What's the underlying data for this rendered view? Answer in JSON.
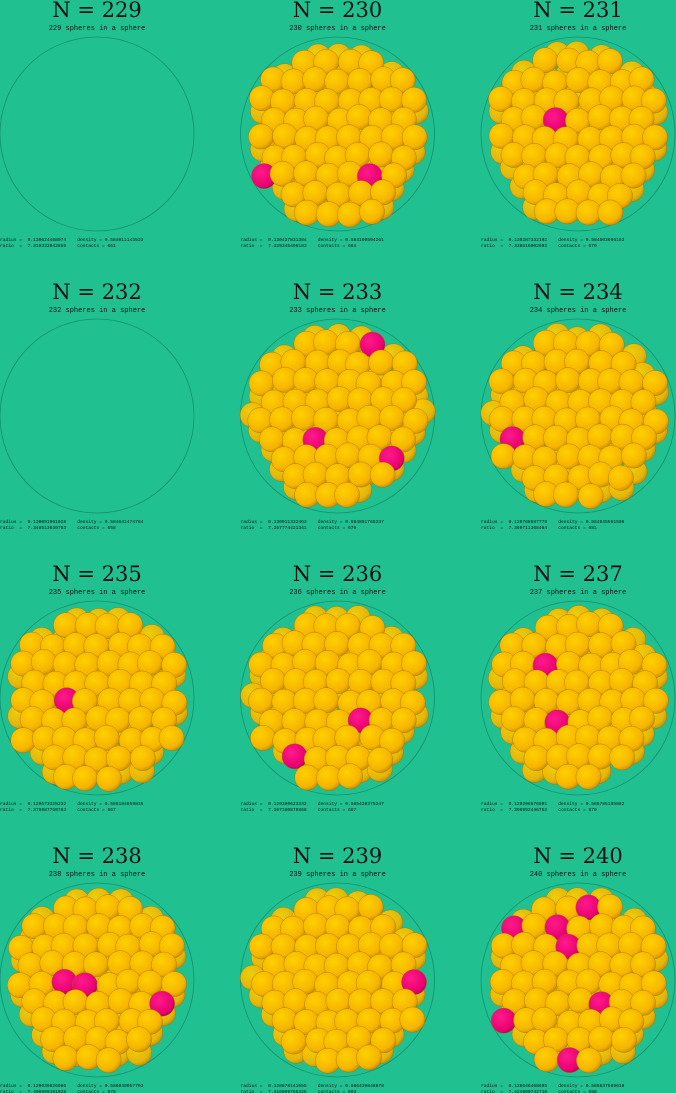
{
  "panels": [
    {
      "title": "N = 229",
      "subtitle": "229 spheres in a sphere",
      "line1": "radius =  0.130624488974    density = 0.584011143533",
      "line2": "ratio  =  7.319332942859    contacts = 661"
    },
    {
      "title": "N = 230",
      "subtitle": "230 spheres in a sphere",
      "line1": "radius =  0.130437831384    density = 0.584160594261",
      "line2": "ratio  =  7.329345496183    contacts = 664"
    },
    {
      "title": "N = 231",
      "subtitle": "231 spheres in a sphere",
      "line1": "radius =  0.130287332102    density = 0.584503666153",
      "line2": "ratio  =  7.338516002692    contacts = 679"
    },
    {
      "title": "N = 232",
      "subtitle": "232 spheres in a sphere",
      "line1": "radius =  0.130091961028    density = 0.584641474784",
      "line2": "ratio  =  7.348513630763    contacts = 658"
    },
    {
      "title": "N = 233",
      "subtitle": "233 spheres in a sphere",
      "line1": "radius =  0.130011332463    density = 0.584851765337",
      "line2": "ratio  =  7.357774421341    contacts = 676"
    },
    {
      "title": "N = 234",
      "subtitle": "234 spheres in a sphere",
      "line1": "radius =  0.129768587778    density = 0.584945551506",
      "line2": "ratio  =  7.369711368464    contacts = 681"
    },
    {
      "title": "N = 235",
      "subtitle": "235 spheres in a sphere",
      "line1": "radius =  0.129573325232    density = 0.585184859835",
      "line2": "ratio  =  7.376087750763    contacts = 667"
    },
    {
      "title": "N = 236",
      "subtitle": "236 spheres in a sphere",
      "line1": "radius =  0.129380623232    density = 0.585420375347",
      "line2": "ratio  =  7.387180879868    contacts = 667"
    },
    {
      "title": "N = 237",
      "subtitle": "237 spheres in a sphere",
      "line1": "radius =  0.129208576801    density = 0.585785185882",
      "line2": "ratio  =  7.396992446752    contacts = 679"
    },
    {
      "title": "N = 238",
      "subtitle": "238 spheres in a sphere",
      "line1": "radius =  0.129036826986    density = 0.586040057793",
      "line2": "ratio  =  7.406999181028    contacts = 676"
    },
    {
      "title": "N = 239",
      "subtitle": "239 spheres in a sphere",
      "line1": "radius =  0.128878141555    density = 0.586439848878",
      "line2": "ratio  =  7.416099765325    contacts = 693"
    },
    {
      "title": "N = 240",
      "subtitle": "240 spheres in a sphere",
      "line1": "radius =  0.128646468695    density = 0.585837569618",
      "line2": "ratio  =  7.424900742710    contacts = 688"
    }
  ]
}
